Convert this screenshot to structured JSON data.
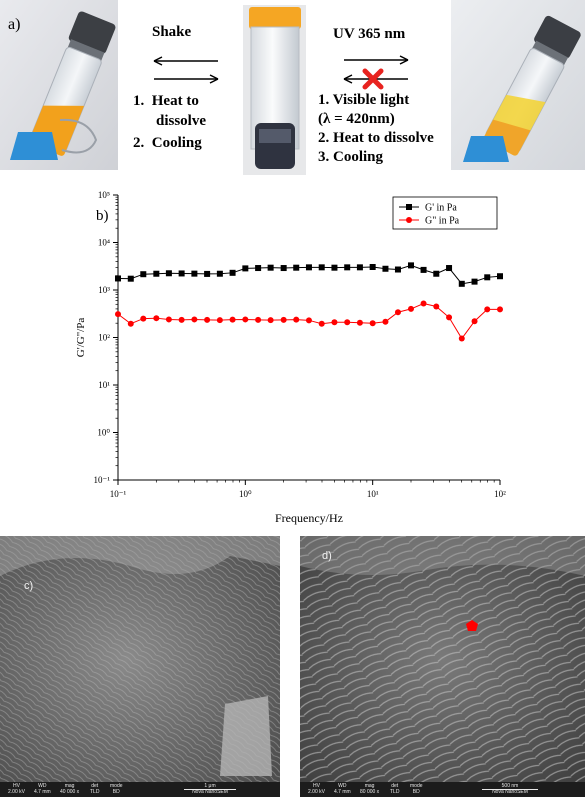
{
  "panel_a": {
    "label": "a)",
    "left_arrow_label": "Shake",
    "left_steps": [
      "1.  Heat to",
      "dissolve",
      "2.  Cooling"
    ],
    "right_arrow_label": "UV 365 nm",
    "right_steps": [
      "1. Visible light",
      "(λ = 420nm)",
      "2. Heat to dissolve",
      "3. Cooling"
    ],
    "colors": {
      "gel_orange": "#f2a11c",
      "clip_blue": "#2e8fd6",
      "gel_yellow": "#f3d43a",
      "cross_red": "#e8231f"
    }
  },
  "panel_b": {
    "label": "b)"
  },
  "chart_data": {
    "type": "line",
    "xlabel": "Frequency/Hz",
    "ylabel": "G'/G\"/Pa",
    "x_scale": "log",
    "y_scale": "log",
    "xlim": [
      0.1,
      100
    ],
    "ylim": [
      0.1,
      1000
    ],
    "x_ticks": [
      "10⁻¹",
      "10⁰",
      "10¹",
      "10²"
    ],
    "y_ticks": [
      "10⁻¹",
      "10⁰",
      "10¹",
      "10²",
      "10³",
      "10⁴",
      "10⁵"
    ],
    "legend_position": "top-right",
    "x": [
      0.1,
      0.126,
      0.158,
      0.2,
      0.251,
      0.316,
      0.398,
      0.501,
      0.631,
      0.794,
      1,
      1.26,
      1.58,
      2,
      2.51,
      3.16,
      3.98,
      5.01,
      6.31,
      7.94,
      10,
      12.6,
      15.8,
      20,
      25.1,
      31.6,
      39.8,
      50.1,
      63.1,
      79.4,
      100
    ],
    "series": [
      {
        "name": "G' in Pa",
        "color": "#000000",
        "marker": "square",
        "values": [
          1750,
          1730,
          2150,
          2200,
          2250,
          2230,
          2210,
          2180,
          2200,
          2300,
          2850,
          2900,
          2950,
          2900,
          2950,
          3000,
          3000,
          2950,
          3000,
          3000,
          3050,
          2800,
          2700,
          3300,
          2650,
          2200,
          2900,
          1350,
          1500,
          1850,
          1950
        ]
      },
      {
        "name": "G\" in Pa",
        "color": "#ff0000",
        "marker": "circle",
        "values": [
          310,
          195,
          250,
          255,
          240,
          235,
          240,
          235,
          232,
          238,
          240,
          235,
          232,
          235,
          238,
          230,
          195,
          210,
          210,
          205,
          200,
          215,
          340,
          400,
          520,
          450,
          265,
          95,
          220,
          390,
          390
        ]
      }
    ]
  },
  "panel_c": {
    "label": "c)",
    "footer": [
      [
        "HV",
        "2.00 kV"
      ],
      [
        "WD",
        "4.7 mm"
      ],
      [
        "mag",
        "40 000 x"
      ],
      [
        "det",
        "TLD"
      ],
      [
        "mode",
        "BD"
      ],
      [
        "1 μm",
        "Nova NanoSEM"
      ]
    ]
  },
  "panel_d": {
    "label": "d)",
    "footer": [
      [
        "HV",
        "2.00 kV"
      ],
      [
        "WD",
        "4.7 mm"
      ],
      [
        "mag",
        "80 000 x"
      ],
      [
        "det",
        "TLD"
      ],
      [
        "mode",
        "BD"
      ],
      [
        "500 nm",
        "Nova NanoSEM"
      ]
    ]
  }
}
